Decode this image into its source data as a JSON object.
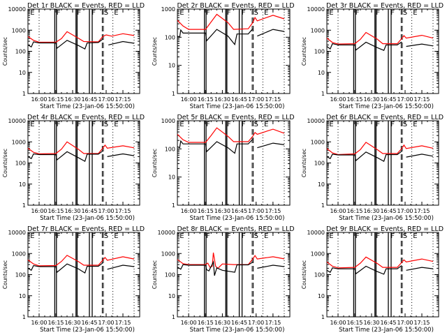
{
  "chart_data": [
    {
      "type": "line",
      "title": "Det 1r BLACK = Events, RED = LLD",
      "ylabel": "Counts/sec",
      "xlabel": "Start Time (23-Jan-06 15:50:00)",
      "ylim": [
        1,
        10000
      ],
      "yticks": [
        "1",
        "10",
        "100",
        "1000",
        "10000"
      ],
      "xticks": [
        "16:00",
        "16:15",
        "16:30",
        "16:45",
        "17:00",
        "17:15"
      ],
      "xlim_min": [
        -5,
        97
      ],
      "markers": [
        "E",
        "F",
        "F",
        "F",
        "S",
        "E"
      ],
      "series": [
        {
          "name": "Events",
          "color": "#000000"
        },
        {
          "name": "LLD",
          "color": "#ff0000"
        }
      ],
      "red": [
        [
          -5,
          500
        ],
        [
          0,
          330
        ],
        [
          5,
          270
        ],
        [
          20,
          270
        ],
        [
          25,
          400
        ],
        [
          30,
          850
        ],
        [
          40,
          420
        ],
        [
          45,
          290
        ],
        [
          58,
          280
        ],
        [
          62,
          500
        ],
        [
          65,
          600
        ],
        [
          70,
          520
        ],
        [
          80,
          680
        ],
        [
          90,
          560
        ]
      ],
      "black": [
        [
          -5,
          200
        ],
        [
          -2,
          160
        ],
        [
          0,
          280
        ],
        [
          5,
          250
        ],
        [
          20,
          250
        ],
        [
          21,
          140
        ],
        [
          30,
          330
        ],
        [
          40,
          190
        ],
        [
          46,
          130
        ],
        [
          48,
          250
        ],
        [
          58,
          260
        ],
        [
          62,
          380
        ],
        [
          65,
          null
        ],
        [
          67,
          200
        ],
        [
          80,
          290
        ],
        [
          90,
          240
        ]
      ]
    },
    {
      "type": "line",
      "title": "Det 2r BLACK = Events, RED = LLD",
      "ylabel": "Counts/sec",
      "xlabel": "Start Time (23-Jan-06 15:50:00)",
      "ylim": [
        1,
        1000
      ],
      "yticks": [
        "1",
        "10",
        "100",
        "1000"
      ],
      "xticks": [
        "16:00",
        "16:15",
        "16:30",
        "16:45",
        "17:00",
        "17:15"
      ],
      "markers": [
        "E",
        "F",
        "F",
        "F",
        "S",
        "E"
      ],
      "red": [
        [
          -5,
          400
        ],
        [
          0,
          250
        ],
        [
          5,
          190
        ],
        [
          20,
          190
        ],
        [
          25,
          350
        ],
        [
          30,
          650
        ],
        [
          40,
          330
        ],
        [
          45,
          190
        ],
        [
          58,
          200
        ],
        [
          62,
          330
        ],
        [
          64,
          500
        ],
        [
          66,
          380
        ],
        [
          80,
          600
        ],
        [
          90,
          450
        ]
      ],
      "black": [
        [
          -5,
          110
        ],
        [
          -3,
          100
        ],
        [
          -2,
          180
        ],
        [
          0,
          140
        ],
        [
          20,
          140
        ],
        [
          21,
          75
        ],
        [
          30,
          190
        ],
        [
          40,
          110
        ],
        [
          46,
          55
        ],
        [
          48,
          130
        ],
        [
          58,
          130
        ],
        [
          62,
          200
        ],
        [
          64,
          null
        ],
        [
          66,
          110
        ],
        [
          80,
          190
        ],
        [
          90,
          160
        ]
      ]
    },
    {
      "type": "line",
      "title": "Det 3r BLACK = Events, RED = LLD",
      "ylabel": "Counts/sec",
      "xlabel": "Start Time (23-Jan-06 15:50:00)",
      "ylim": [
        1,
        10000
      ],
      "yticks": [
        "1",
        "10",
        "100",
        "1000",
        "10000"
      ],
      "xticks": [
        "16:00",
        "16:15",
        "16:30",
        "16:45",
        "17:00",
        "17:15"
      ],
      "markers": [
        "E",
        "F",
        "F",
        "F",
        "S",
        "E"
      ],
      "red": [
        [
          -5,
          420
        ],
        [
          0,
          260
        ],
        [
          5,
          220
        ],
        [
          20,
          230
        ],
        [
          25,
          370
        ],
        [
          30,
          780
        ],
        [
          40,
          380
        ],
        [
          45,
          230
        ],
        [
          58,
          230
        ],
        [
          62,
          400
        ],
        [
          64,
          550
        ],
        [
          66,
          420
        ],
        [
          80,
          570
        ],
        [
          90,
          420
        ]
      ],
      "black": [
        [
          -5,
          170
        ],
        [
          -2,
          130
        ],
        [
          0,
          230
        ],
        [
          5,
          200
        ],
        [
          20,
          200
        ],
        [
          21,
          115
        ],
        [
          30,
          270
        ],
        [
          40,
          150
        ],
        [
          46,
          110
        ],
        [
          48,
          200
        ],
        [
          58,
          200
        ],
        [
          62,
          280
        ],
        [
          64,
          null
        ],
        [
          66,
          170
        ],
        [
          80,
          220
        ],
        [
          90,
          180
        ]
      ]
    },
    {
      "type": "line",
      "title": "Det 4r BLACK = Events, RED = LLD",
      "ylabel": "Counts/sec",
      "xlabel": "Start Time (23-Jan-06 15:50:00)",
      "ylim": [
        1,
        10000
      ],
      "yticks": [
        "1",
        "10",
        "100",
        "1000",
        "10000"
      ],
      "xticks": [
        "16:00",
        "16:15",
        "16:30",
        "16:45",
        "17:00",
        "17:15"
      ],
      "markers": [
        "E",
        "F",
        "F",
        "F",
        "S",
        "E"
      ],
      "red": [
        [
          -5,
          500
        ],
        [
          0,
          320
        ],
        [
          5,
          270
        ],
        [
          20,
          280
        ],
        [
          25,
          450
        ],
        [
          30,
          1000
        ],
        [
          40,
          450
        ],
        [
          45,
          280
        ],
        [
          58,
          280
        ],
        [
          62,
          500
        ],
        [
          64,
          700
        ],
        [
          66,
          500
        ],
        [
          80,
          650
        ],
        [
          90,
          520
        ]
      ],
      "black": [
        [
          -5,
          200
        ],
        [
          -2,
          160
        ],
        [
          0,
          270
        ],
        [
          5,
          250
        ],
        [
          20,
          250
        ],
        [
          21,
          140
        ],
        [
          30,
          340
        ],
        [
          40,
          180
        ],
        [
          46,
          120
        ],
        [
          48,
          260
        ],
        [
          58,
          260
        ],
        [
          62,
          370
        ],
        [
          64,
          null
        ],
        [
          66,
          200
        ],
        [
          80,
          270
        ],
        [
          90,
          220
        ]
      ]
    },
    {
      "type": "line",
      "title": "Det 5r BLACK = Events, RED = LLD",
      "ylabel": "Counts/sec",
      "xlabel": "Start Time (23-Jan-06 15:50:00)",
      "ylim": [
        1,
        1000
      ],
      "yticks": [
        "1",
        "10",
        "100",
        "1000"
      ],
      "xticks": [
        "16:00",
        "16:15",
        "16:30",
        "16:45",
        "17:00",
        "17:15"
      ],
      "markers": [
        "E",
        "F",
        "F",
        "F",
        "S",
        "E"
      ],
      "red": [
        [
          -5,
          330
        ],
        [
          0,
          210
        ],
        [
          5,
          170
        ],
        [
          20,
          170
        ],
        [
          25,
          300
        ],
        [
          30,
          560
        ],
        [
          40,
          280
        ],
        [
          45,
          180
        ],
        [
          58,
          180
        ],
        [
          62,
          280
        ],
        [
          64,
          380
        ],
        [
          66,
          330
        ],
        [
          80,
          500
        ],
        [
          90,
          360
        ]
      ],
      "black": [
        [
          -5,
          120
        ],
        [
          -3,
          110
        ],
        [
          -2,
          190
        ],
        [
          0,
          150
        ],
        [
          20,
          150
        ],
        [
          21,
          80
        ],
        [
          30,
          180
        ],
        [
          40,
          110
        ],
        [
          46,
          70
        ],
        [
          48,
          150
        ],
        [
          58,
          150
        ],
        [
          62,
          220
        ],
        [
          64,
          null
        ],
        [
          66,
          110
        ],
        [
          80,
          160
        ],
        [
          90,
          140
        ]
      ]
    },
    {
      "type": "line",
      "title": "Det 6r BLACK = Events, RED = LLD",
      "ylabel": "Counts/sec",
      "xlabel": "Start Time (23-Jan-06 15:50:00)",
      "ylim": [
        1,
        10000
      ],
      "yticks": [
        "1",
        "10",
        "100",
        "1000",
        "10000"
      ],
      "xticks": [
        "16:00",
        "16:15",
        "16:30",
        "16:45",
        "17:00",
        "17:15"
      ],
      "markers": [
        "E",
        "F",
        "F",
        "F",
        "S",
        "E"
      ],
      "red": [
        [
          -5,
          480
        ],
        [
          0,
          300
        ],
        [
          5,
          250
        ],
        [
          20,
          270
        ],
        [
          25,
          430
        ],
        [
          30,
          950
        ],
        [
          40,
          430
        ],
        [
          45,
          280
        ],
        [
          58,
          280
        ],
        [
          62,
          480
        ],
        [
          64,
          700
        ],
        [
          66,
          480
        ],
        [
          80,
          650
        ],
        [
          90,
          500
        ]
      ],
      "black": [
        [
          -5,
          200
        ],
        [
          -2,
          160
        ],
        [
          0,
          260
        ],
        [
          5,
          240
        ],
        [
          20,
          240
        ],
        [
          21,
          130
        ],
        [
          30,
          330
        ],
        [
          40,
          180
        ],
        [
          46,
          120
        ],
        [
          48,
          250
        ],
        [
          58,
          250
        ],
        [
          62,
          360
        ],
        [
          64,
          null
        ],
        [
          66,
          190
        ],
        [
          80,
          260
        ],
        [
          90,
          210
        ]
      ]
    },
    {
      "type": "line",
      "title": "Det 7r BLACK = Events, RED = LLD",
      "ylabel": "Counts/sec",
      "xlabel": "Start Time (23-Jan-06 15:50:00)",
      "ylim": [
        1,
        10000
      ],
      "yticks": [
        "1",
        "10",
        "100",
        "1000",
        "10000"
      ],
      "xticks": [
        "16:00",
        "16:15",
        "16:30",
        "16:45",
        "17:00",
        "17:15"
      ],
      "markers": [
        "E",
        "F",
        "F",
        "F",
        "S",
        "E"
      ],
      "red": [
        [
          -5,
          500
        ],
        [
          0,
          320
        ],
        [
          5,
          260
        ],
        [
          20,
          270
        ],
        [
          25,
          420
        ],
        [
          30,
          820
        ],
        [
          40,
          420
        ],
        [
          45,
          280
        ],
        [
          58,
          280
        ],
        [
          62,
          480
        ],
        [
          64,
          650
        ],
        [
          66,
          480
        ],
        [
          80,
          700
        ],
        [
          90,
          550
        ]
      ],
      "black": [
        [
          -5,
          200
        ],
        [
          -2,
          160
        ],
        [
          0,
          270
        ],
        [
          5,
          240
        ],
        [
          20,
          240
        ],
        [
          21,
          130
        ],
        [
          30,
          320
        ],
        [
          40,
          190
        ],
        [
          46,
          120
        ],
        [
          48,
          250
        ],
        [
          58,
          250
        ],
        [
          62,
          360
        ],
        [
          64,
          null
        ],
        [
          66,
          180
        ],
        [
          80,
          280
        ],
        [
          90,
          240
        ]
      ]
    },
    {
      "type": "line",
      "title": "Det 8r BLACK = Events, RED = LLD",
      "ylabel": "Counts/sec",
      "xlabel": "Start Time (23-Jan-06 15:50:00)",
      "ylim": [
        1,
        10000
      ],
      "yticks": [
        "1",
        "10",
        "100",
        "1000",
        "10000"
      ],
      "xticks": [
        "16:00",
        "16:15",
        "16:30",
        "16:45",
        "17:00",
        "17:15"
      ],
      "markers": [
        "E",
        "F",
        "F",
        "F",
        "S",
        "E"
      ],
      "red": [
        [
          -5,
          520
        ],
        [
          0,
          330
        ],
        [
          5,
          300
        ],
        [
          20,
          300
        ],
        [
          22,
          350
        ],
        [
          24,
          220
        ],
        [
          26,
          250
        ],
        [
          27,
          1100
        ],
        [
          29,
          250
        ],
        [
          31,
          200
        ],
        [
          35,
          320
        ],
        [
          45,
          300
        ],
        [
          58,
          300
        ],
        [
          62,
          550
        ],
        [
          64,
          800
        ],
        [
          66,
          550
        ],
        [
          80,
          700
        ],
        [
          90,
          560
        ]
      ],
      "black": [
        [
          -5,
          230
        ],
        [
          -2,
          180
        ],
        [
          0,
          300
        ],
        [
          5,
          280
        ],
        [
          20,
          280
        ],
        [
          21,
          170
        ],
        [
          23,
          150
        ],
        [
          27,
          400
        ],
        [
          28,
          90
        ],
        [
          30,
          210
        ],
        [
          35,
          160
        ],
        [
          46,
          130
        ],
        [
          48,
          290
        ],
        [
          58,
          290
        ],
        [
          62,
          390
        ],
        [
          64,
          null
        ],
        [
          66,
          200
        ],
        [
          80,
          280
        ],
        [
          90,
          240
        ]
      ]
    },
    {
      "type": "line",
      "title": "Det 9r BLACK = Events, RED = LLD",
      "ylabel": "Counts/sec",
      "xlabel": "Start Time (23-Jan-06 15:50:00)",
      "ylim": [
        1,
        10000
      ],
      "yticks": [
        "1",
        "10",
        "100",
        "1000",
        "10000"
      ],
      "xticks": [
        "16:00",
        "16:15",
        "16:30",
        "16:45",
        "17:00",
        "17:15"
      ],
      "markers": [
        "E",
        "F",
        "F",
        "F",
        "S",
        "E"
      ],
      "red": [
        [
          -5,
          400
        ],
        [
          0,
          250
        ],
        [
          5,
          210
        ],
        [
          20,
          220
        ],
        [
          25,
          350
        ],
        [
          30,
          680
        ],
        [
          40,
          340
        ],
        [
          45,
          220
        ],
        [
          58,
          220
        ],
        [
          62,
          380
        ],
        [
          64,
          500
        ],
        [
          66,
          400
        ],
        [
          80,
          550
        ],
        [
          90,
          420
        ]
      ],
      "black": [
        [
          -5,
          160
        ],
        [
          -2,
          130
        ],
        [
          0,
          210
        ],
        [
          5,
          190
        ],
        [
          20,
          190
        ],
        [
          21,
          110
        ],
        [
          30,
          250
        ],
        [
          40,
          140
        ],
        [
          46,
          105
        ],
        [
          48,
          190
        ],
        [
          58,
          190
        ],
        [
          62,
          270
        ],
        [
          64,
          null
        ],
        [
          66,
          160
        ],
        [
          80,
          220
        ],
        [
          90,
          190
        ]
      ]
    }
  ]
}
